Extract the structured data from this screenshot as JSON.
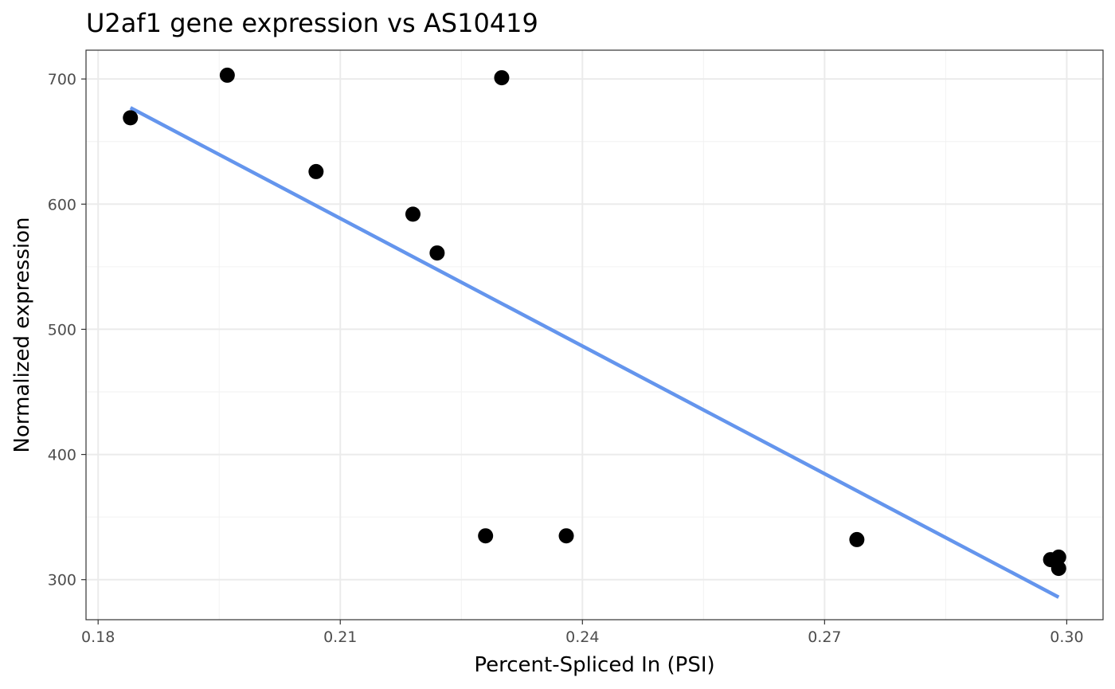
{
  "chart_data": {
    "type": "scatter",
    "title": "U2af1 gene expression vs AS10419",
    "xlabel": "Percent-Spliced In (PSI)",
    "ylabel": "Normalized expression",
    "xlim": [
      0.1785,
      0.3045
    ],
    "ylim": [
      268,
      723
    ],
    "xticks": [
      0.18,
      0.21,
      0.24,
      0.27,
      0.3
    ],
    "xtick_labels": [
      "0.18",
      "0.21",
      "0.24",
      "0.27",
      "0.30"
    ],
    "yticks": [
      300,
      400,
      500,
      600,
      700
    ],
    "ytick_labels": [
      "300",
      "400",
      "500",
      "600",
      "700"
    ],
    "grid": true,
    "points": [
      {
        "x": 0.184,
        "y": 669
      },
      {
        "x": 0.196,
        "y": 703
      },
      {
        "x": 0.207,
        "y": 626
      },
      {
        "x": 0.219,
        "y": 592
      },
      {
        "x": 0.222,
        "y": 561
      },
      {
        "x": 0.228,
        "y": 335
      },
      {
        "x": 0.23,
        "y": 701
      },
      {
        "x": 0.238,
        "y": 335
      },
      {
        "x": 0.274,
        "y": 332
      },
      {
        "x": 0.298,
        "y": 316
      },
      {
        "x": 0.299,
        "y": 318
      },
      {
        "x": 0.299,
        "y": 309
      }
    ],
    "trend_line": {
      "x": [
        0.184,
        0.299
      ],
      "y": [
        677,
        286
      ]
    },
    "colors": {
      "points": "#000000",
      "trend_line": "#6495ED"
    }
  }
}
